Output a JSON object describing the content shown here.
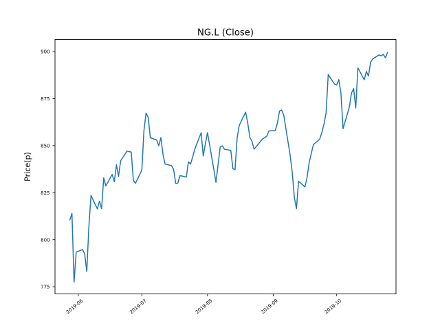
{
  "chart_data": {
    "type": "line",
    "title": "NG.L (Close)",
    "xlabel": "",
    "ylabel": "Price(p)",
    "legend_position": "none",
    "grid": false,
    "line_color": "#1f77b4",
    "background_color": "#ffffff",
    "text_color": "#000000",
    "xlim": [
      "2019-05-21",
      "2019-10-29"
    ],
    "ylim": [
      771.2,
      906.4
    ],
    "y_ticks": [
      775,
      800,
      825,
      850,
      875,
      900
    ],
    "x_ticks": [
      {
        "date": "2019-06-01",
        "label": "2019-06"
      },
      {
        "date": "2019-07-01",
        "label": "2019-07"
      },
      {
        "date": "2019-08-01",
        "label": "2019-08"
      },
      {
        "date": "2019-09-01",
        "label": "2019-09"
      },
      {
        "date": "2019-10-01",
        "label": "2019-10"
      }
    ],
    "series": [
      {
        "name": "Close",
        "color": "#1f77b4",
        "dates": [
          "2019-05-28",
          "2019-05-29",
          "2019-05-30",
          "2019-05-31",
          "2019-06-03",
          "2019-06-04",
          "2019-06-05",
          "2019-06-06",
          "2019-06-07",
          "2019-06-10",
          "2019-06-11",
          "2019-06-12",
          "2019-06-13",
          "2019-06-14",
          "2019-06-17",
          "2019-06-18",
          "2019-06-19",
          "2019-06-20",
          "2019-06-21",
          "2019-06-24",
          "2019-06-25",
          "2019-06-26",
          "2019-06-27",
          "2019-06-28",
          "2019-07-01",
          "2019-07-02",
          "2019-07-03",
          "2019-07-04",
          "2019-07-05",
          "2019-07-08",
          "2019-07-09",
          "2019-07-10",
          "2019-07-11",
          "2019-07-12",
          "2019-07-15",
          "2019-07-16",
          "2019-07-17",
          "2019-07-18",
          "2019-07-19",
          "2019-07-22",
          "2019-07-23",
          "2019-07-24",
          "2019-07-25",
          "2019-07-26",
          "2019-07-29",
          "2019-07-30",
          "2019-07-31",
          "2019-08-01",
          "2019-08-02",
          "2019-08-05",
          "2019-08-06",
          "2019-08-07",
          "2019-08-08",
          "2019-08-09",
          "2019-08-12",
          "2019-08-13",
          "2019-08-14",
          "2019-08-15",
          "2019-08-16",
          "2019-08-19",
          "2019-08-20",
          "2019-08-21",
          "2019-08-22",
          "2019-08-23",
          "2019-08-27",
          "2019-08-28",
          "2019-08-29",
          "2019-08-30",
          "2019-09-02",
          "2019-09-03",
          "2019-09-04",
          "2019-09-05",
          "2019-09-06",
          "2019-09-09",
          "2019-09-10",
          "2019-09-11",
          "2019-09-12",
          "2019-09-13",
          "2019-09-16",
          "2019-09-17",
          "2019-09-18",
          "2019-09-19",
          "2019-09-20",
          "2019-09-23",
          "2019-09-24",
          "2019-09-25",
          "2019-09-26",
          "2019-09-27",
          "2019-09-30",
          "2019-10-01",
          "2019-10-02",
          "2019-10-03",
          "2019-10-04",
          "2019-10-07",
          "2019-10-08",
          "2019-10-09",
          "2019-10-10",
          "2019-10-11",
          "2019-10-14",
          "2019-10-15",
          "2019-10-16",
          "2019-10-17",
          "2019-10-18",
          "2019-10-21",
          "2019-10-22",
          "2019-10-23",
          "2019-10-24",
          "2019-10-25"
        ],
        "values": [
          810.5,
          814.0,
          777.5,
          793.4,
          794.8,
          792.6,
          783.1,
          807.0,
          823.5,
          816.4,
          820.5,
          816.5,
          832.9,
          828.6,
          834.7,
          830.8,
          839.8,
          833.7,
          842.0,
          847.1,
          846.8,
          846.6,
          831.5,
          830.0,
          837.0,
          858.0,
          867.3,
          865.1,
          854.2,
          853.0,
          849.9,
          854.3,
          845.1,
          840.2,
          839.4,
          837.4,
          829.9,
          830.1,
          834.1,
          833.3,
          841.4,
          840.2,
          844.0,
          848.1,
          856.9,
          844.5,
          851.0,
          856.9,
          850.5,
          830.5,
          840.0,
          849.3,
          849.9,
          848.1,
          847.5,
          837.8,
          837.2,
          854.2,
          860.8,
          867.8,
          862.0,
          854.4,
          852.3,
          848.1,
          853.6,
          854.2,
          855.1,
          857.8,
          858.0,
          862.0,
          868.4,
          868.9,
          866.2,
          845.1,
          835.9,
          822.6,
          816.5,
          831.1,
          828.1,
          833.0,
          840.9,
          845.9,
          850.5,
          853.5,
          857.0,
          861.4,
          867.5,
          887.8,
          882.7,
          882.2,
          885.1,
          877.9,
          859.0,
          870.6,
          878.0,
          880.3,
          870.0,
          891.3,
          885.0,
          889.4,
          887.0,
          894.3,
          896.1,
          898.2,
          897.7,
          898.5,
          896.7,
          899.5
        ]
      }
    ]
  }
}
